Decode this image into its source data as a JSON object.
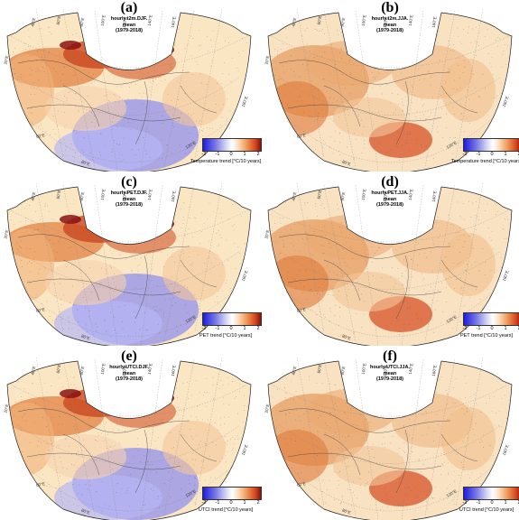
{
  "panels": [
    {
      "label": "(a)",
      "title_line1": "hourly.t2m.DJF.",
      "title_line2": "mean",
      "title_line3": "(1979-2018)",
      "cbar_label": "Temperature trend [°C/10 years]",
      "season": "DJF"
    },
    {
      "label": "(b)",
      "title_line1": "hourly.t2m.JJA.",
      "title_line2": "mean",
      "title_line3": "(1979-2018)",
      "cbar_label": "Temperature trend [°C/10 years]",
      "season": "JJA"
    },
    {
      "label": "(c)",
      "title_line1": "hourly.PET.DJF.",
      "title_line2": "mean",
      "title_line3": "(1979-2018)",
      "cbar_label": "PET trend [°C/10 years]",
      "season": "DJF"
    },
    {
      "label": "(d)",
      "title_line1": "hourly.PET.JJA.",
      "title_line2": "mean",
      "title_line3": "(1979-2018)",
      "cbar_label": "PET trend [°C/10 years]",
      "season": "JJA"
    },
    {
      "label": "(e)",
      "title_line1": "hourly.UTCI.DJF.",
      "title_line2": "mean",
      "title_line3": "(1979-2018)",
      "cbar_label": "UTCI trend [°C/10 years]",
      "season": "DJF"
    },
    {
      "label": "(f)",
      "title_line1": "hourly.UTCI.JJA.",
      "title_line2": "mean",
      "title_line3": "(1979-2018)",
      "cbar_label": "UTCI trend [°C/10 years]",
      "season": "JJA"
    }
  ],
  "colorbar": {
    "ticks": [
      "-2",
      "-1",
      "0",
      "1",
      "2"
    ],
    "min": -2,
    "max": 2
  },
  "longitude_labels": {
    "top": [
      "40°E",
      "60°E",
      "80°E",
      "100°E",
      "120°E",
      "140°E",
      "160°E"
    ],
    "right": "180°E",
    "bottom_left": "80°E",
    "bottom_right": "120°E",
    "left_upper": "20°E",
    "left_lower": "60°E"
  },
  "colors": {
    "warm": "#d6481c",
    "hot": "#8b0f0f",
    "cool": "#5a5ae6",
    "neutral": "#fdf3dc",
    "sea": "#ffffff"
  }
}
